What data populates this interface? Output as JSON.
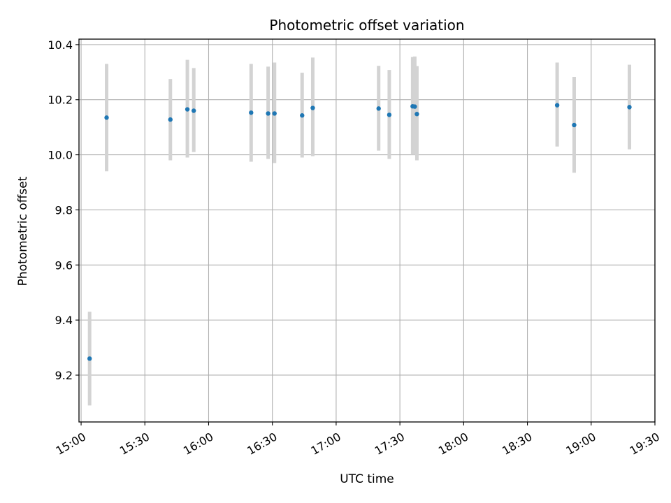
{
  "chart_data": {
    "type": "scatter",
    "title": "Photometric offset variation",
    "xlabel": "UTC time",
    "ylabel": "Photometric offset",
    "x_ticks": [
      "15:00",
      "15:30",
      "16:00",
      "16:30",
      "17:00",
      "17:30",
      "18:00",
      "18:30",
      "19:00",
      "19:30"
    ],
    "y_ticks": [
      "9.2",
      "9.4",
      "9.6",
      "9.8",
      "10.0",
      "10.2",
      "10.4"
    ],
    "xlim": [
      "14:59",
      "19:30"
    ],
    "ylim": [
      9.03,
      10.42
    ],
    "grid": true,
    "marker_color": "#1f77b4",
    "errorbar_color": "#d3d3d3",
    "series": [
      {
        "points": [
          {
            "x": "15:04",
            "y": 9.26,
            "yerr": [
              9.09,
              9.43
            ]
          },
          {
            "x": "15:12",
            "y": 10.135,
            "yerr": [
              9.94,
              10.33
            ]
          },
          {
            "x": "15:42",
            "y": 10.128,
            "yerr": [
              9.98,
              10.275
            ]
          },
          {
            "x": "15:50",
            "y": 10.165,
            "yerr": [
              9.99,
              10.345
            ]
          },
          {
            "x": "15:53",
            "y": 10.16,
            "yerr": [
              10.01,
              10.315
            ]
          },
          {
            "x": "16:20",
            "y": 10.153,
            "yerr": [
              9.975,
              10.33
            ]
          },
          {
            "x": "16:28",
            "y": 10.15,
            "yerr": [
              9.985,
              10.32
            ]
          },
          {
            "x": "16:31",
            "y": 10.15,
            "yerr": [
              9.97,
              10.335
            ]
          },
          {
            "x": "16:44",
            "y": 10.143,
            "yerr": [
              9.99,
              10.298
            ]
          },
          {
            "x": "16:49",
            "y": 10.17,
            "yerr": [
              9.995,
              10.353
            ]
          },
          {
            "x": "17:20",
            "y": 10.168,
            "yerr": [
              10.015,
              10.323
            ]
          },
          {
            "x": "17:25",
            "y": 10.145,
            "yerr": [
              9.985,
              10.308
            ]
          },
          {
            "x": "17:36",
            "y": 10.176,
            "yerr": [
              10.0,
              10.355
            ]
          },
          {
            "x": "17:37",
            "y": 10.175,
            "yerr": [
              10.0,
              10.357
            ]
          },
          {
            "x": "17:38",
            "y": 10.148,
            "yerr": [
              9.98,
              10.322
            ]
          },
          {
            "x": "18:44",
            "y": 10.18,
            "yerr": [
              10.03,
              10.335
            ]
          },
          {
            "x": "18:52",
            "y": 10.108,
            "yerr": [
              9.935,
              10.283
            ]
          },
          {
            "x": "19:18",
            "y": 10.173,
            "yerr": [
              10.02,
              10.327
            ]
          }
        ]
      }
    ]
  }
}
